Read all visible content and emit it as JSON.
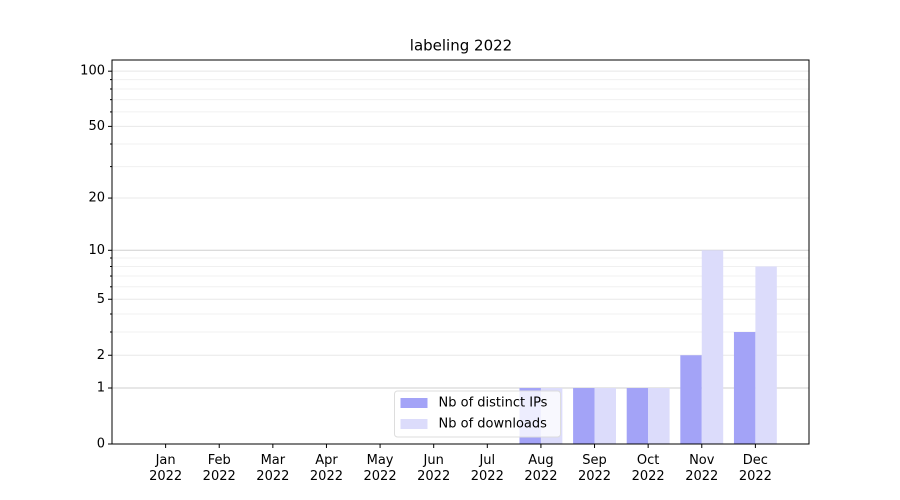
{
  "chart_data": {
    "type": "bar",
    "title": "labeling 2022",
    "categories": [
      "Jan 2022",
      "Feb 2022",
      "Mar 2022",
      "Apr 2022",
      "May 2022",
      "Jun 2022",
      "Jul 2022",
      "Aug 2022",
      "Sep 2022",
      "Oct 2022",
      "Nov 2022",
      "Dec 2022"
    ],
    "series": [
      {
        "name": "Nb of distinct IPs",
        "color": "#a3a3f7",
        "values": [
          0,
          0,
          0,
          0,
          0,
          0,
          0,
          1,
          1,
          1,
          2,
          3
        ]
      },
      {
        "name": "Nb of downloads",
        "color": "#dcdcfb",
        "values": [
          0,
          0,
          0,
          0,
          0,
          0,
          0,
          1,
          1,
          1,
          10,
          8
        ]
      }
    ],
    "yscale": "log1p",
    "ylim": [
      0,
      115
    ],
    "yticks": [
      0,
      1,
      2,
      5,
      10,
      20,
      50,
      100
    ],
    "yminor": [
      3,
      4,
      6,
      7,
      8,
      9,
      30,
      40,
      60,
      70,
      80,
      90
    ],
    "grid": true,
    "legend": "lower center"
  }
}
